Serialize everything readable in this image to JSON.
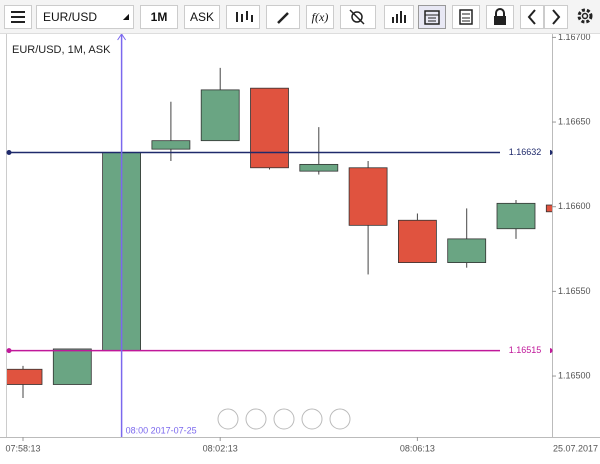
{
  "toolbar": {
    "symbol": "EUR/USD",
    "timeframe": "1M",
    "side": "ASK",
    "function": "f(x)"
  },
  "chart_data": {
    "type": "candlestick",
    "title": "EUR/USD, 1M, ASK",
    "categories": [
      "07:58:13",
      null,
      null,
      null,
      "08:02:13",
      null,
      null,
      null,
      "08:06:13",
      null,
      null,
      null
    ],
    "date_label": "25.07.2017",
    "open": [
      1.16504,
      1.16495,
      1.16515,
      1.16634,
      1.16639,
      1.1667,
      1.16621,
      1.16623,
      1.16592,
      1.16567,
      1.16587,
      1.16601
    ],
    "high": [
      1.16506,
      1.16516,
      1.16632,
      1.16662,
      1.16682,
      1.1667,
      1.16647,
      1.16627,
      1.16596,
      1.16599,
      1.16604,
      1.16601
    ],
    "low": [
      1.16487,
      1.16495,
      1.16515,
      1.16627,
      1.16639,
      1.16622,
      1.16619,
      1.1656,
      1.16567,
      1.16564,
      1.16581,
      1.16597
    ],
    "close": [
      1.16495,
      1.16516,
      1.16632,
      1.16639,
      1.16669,
      1.16623,
      1.16625,
      1.16589,
      1.16567,
      1.16581,
      1.16602,
      1.16597
    ],
    "up_color": "#6aa583",
    "down_color": "#e0533f",
    "ylim": [
      1.16464,
      1.16702
    ],
    "yticks": [
      {
        "value": 1.165,
        "label": "1.16500"
      },
      {
        "value": 1.1655,
        "label": "1.16550"
      },
      {
        "value": 1.166,
        "label": "1.16600"
      },
      {
        "value": 1.1665,
        "label": "1.16650"
      },
      {
        "value": 1.167,
        "label": "1.16700"
      }
    ],
    "hlines": [
      {
        "value": 1.16632,
        "label": "1.16632",
        "color": "#1f2a6b"
      },
      {
        "value": 1.16515,
        "label": "1.16515",
        "color": "#c0189a"
      }
    ],
    "crosshair": {
      "label": "08:00 2017-07-25",
      "color": "#7b68ee"
    }
  }
}
